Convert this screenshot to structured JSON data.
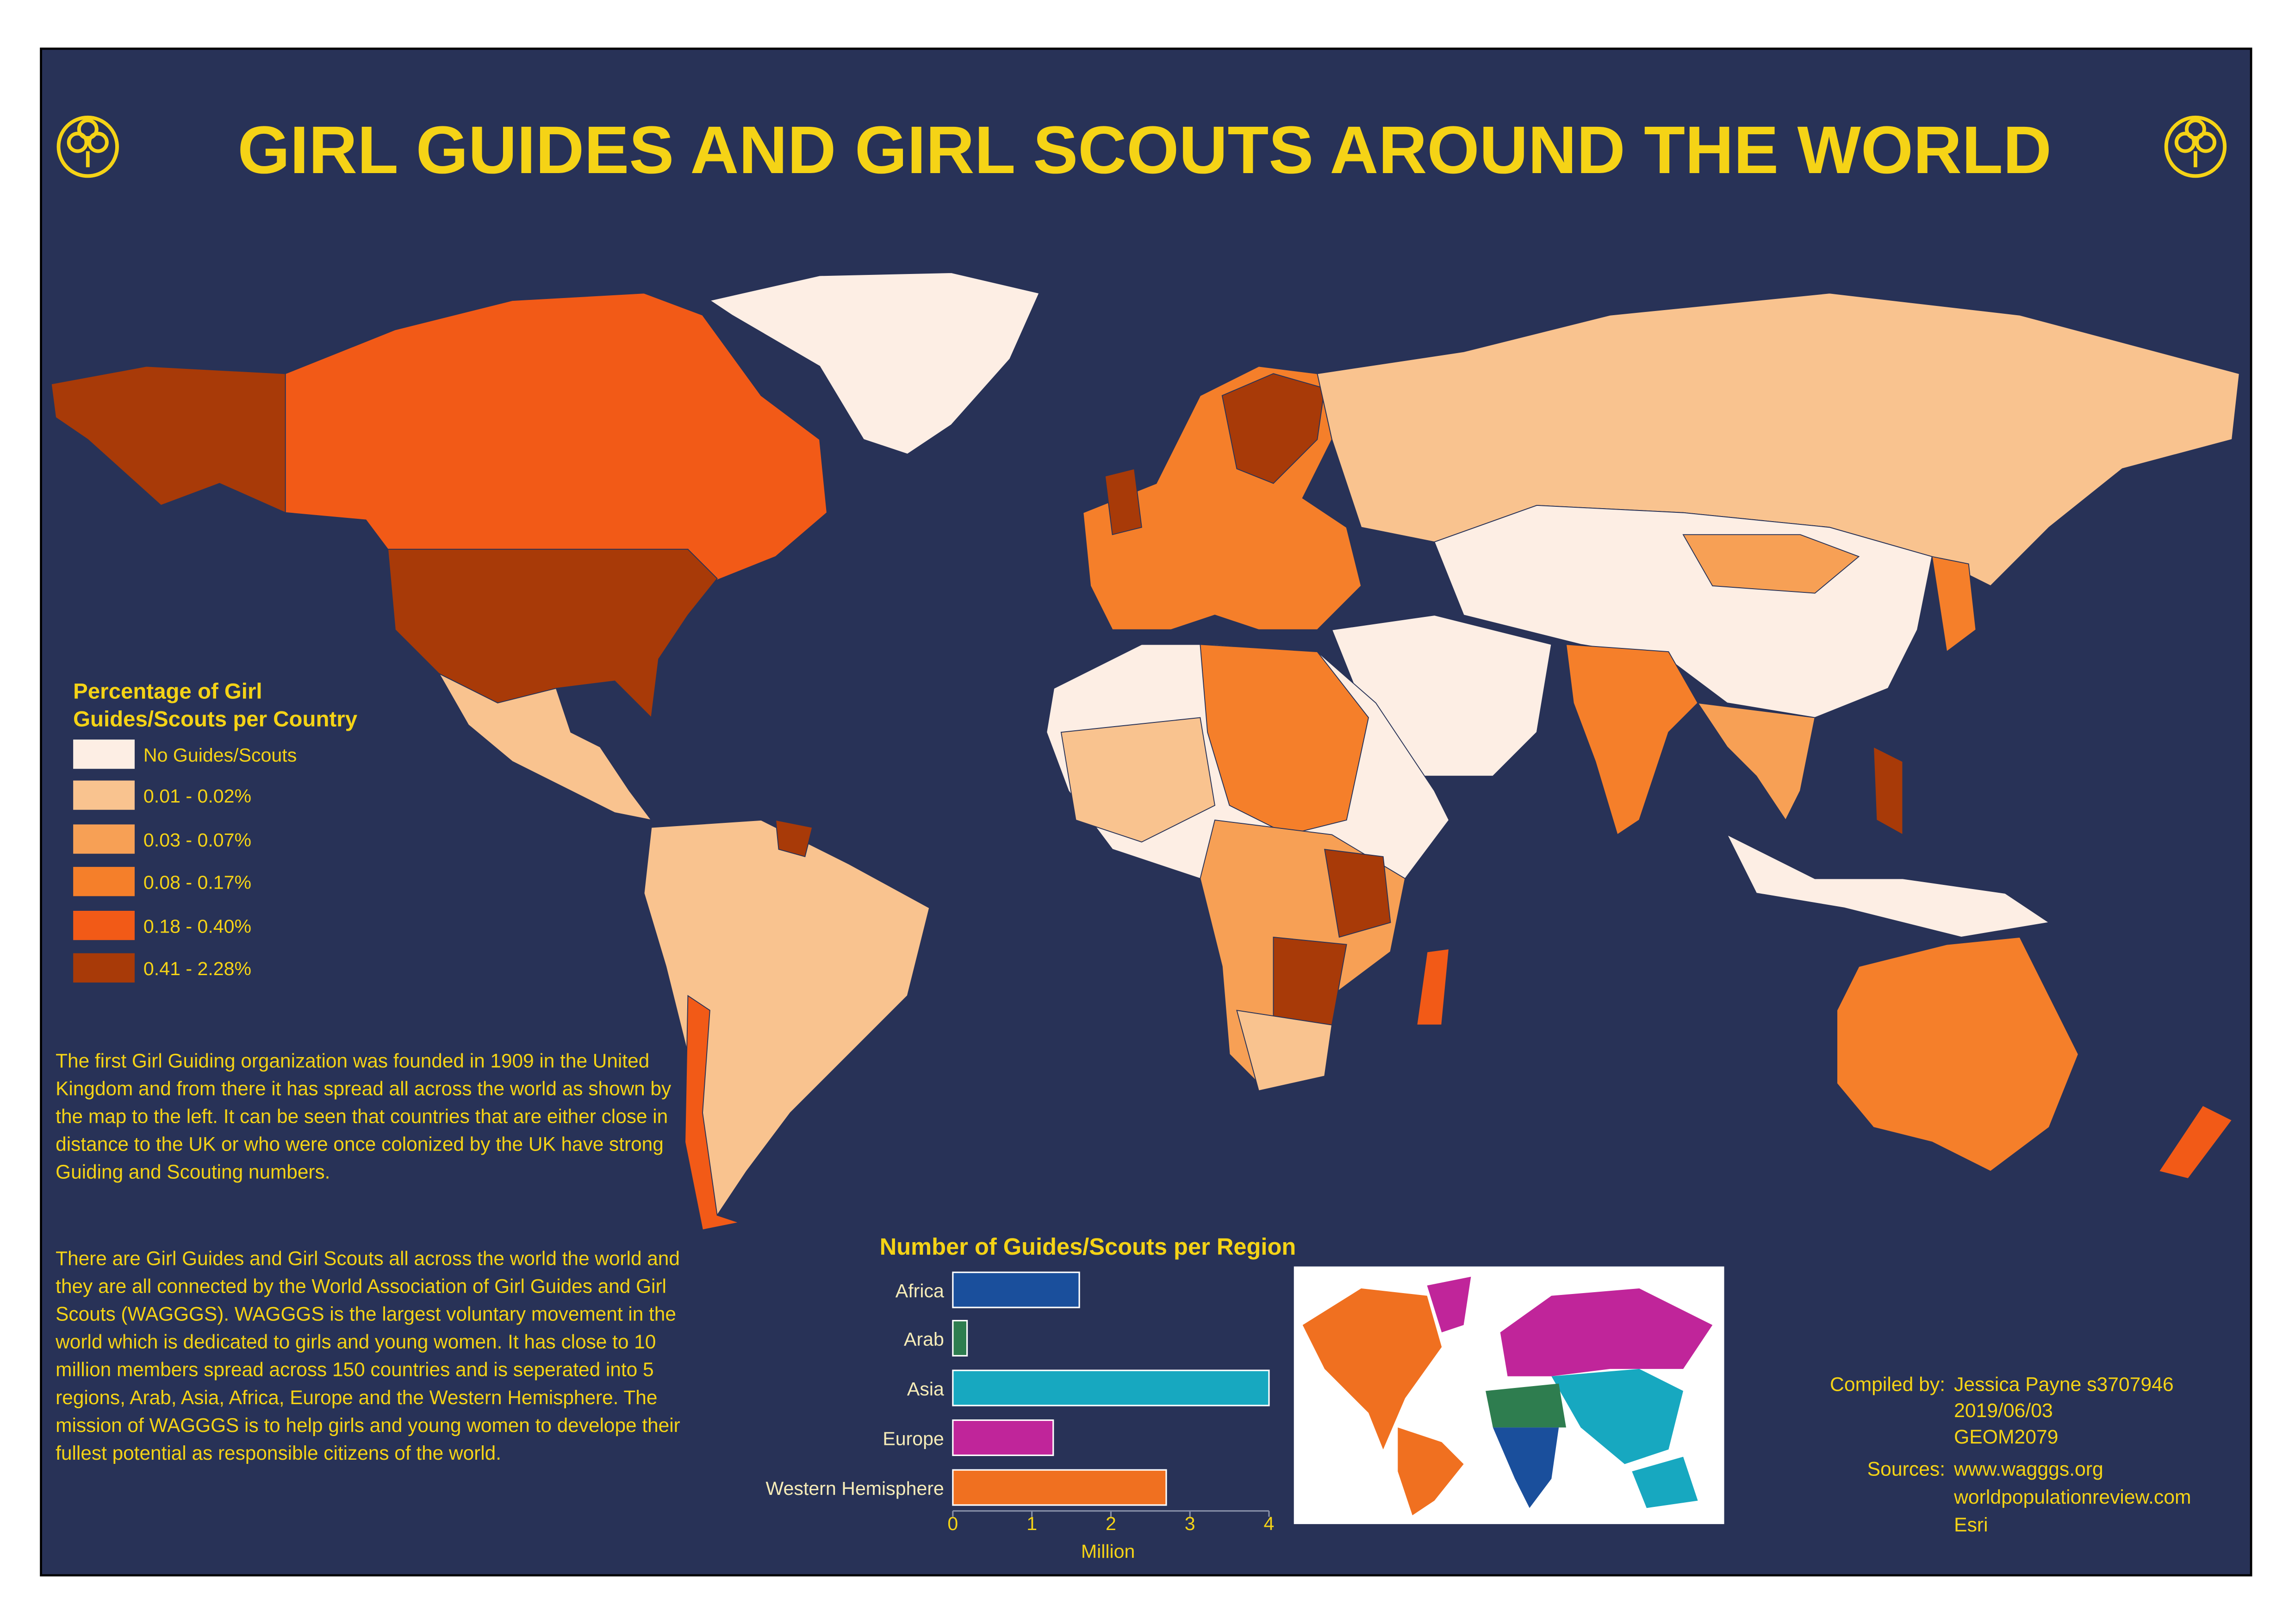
{
  "title": "GIRL GUIDES AND GIRL SCOUTS AROUND THE WORLD",
  "legend": {
    "title": "Percentage of Girl Guides/Scouts per Country",
    "items": [
      {
        "label": "No Guides/Scouts",
        "color": "#fdeee4"
      },
      {
        "label": "0.01 - 0.02%",
        "color": "#f9c38f"
      },
      {
        "label": "0.03 - 0.07%",
        "color": "#f7a055"
      },
      {
        "label": "0.08 - 0.17%",
        "color": "#f57f2a"
      },
      {
        "label": "0.18 - 0.40%",
        "color": "#f25a17"
      },
      {
        "label": "0.41 - 2.28%",
        "color": "#a83a08"
      }
    ]
  },
  "description": [
    "The first Girl Guiding organization was founded in 1909 in the United Kingdom and from there it has spread all across the world as shown by the map to the left. It can be seen that countries that are either close in distance to the UK or who were once colonized by the UK have strong Guiding and Scouting numbers.",
    "There are Girl Guides and Girl Scouts all across the world the world and they are all connected by the World Association of Girl Guides and Girl Scouts (WAGGGS). WAGGGS is the largest voluntary movement in the world which is dedicated to girls and young women. It has close to 10 million members spread across 150 countries and is seperated into 5 regions, Arab, Asia, Africa, Europe and the Western Hemisphere. The mission of WAGGGS is to help girls and young women to develope their fullest potential as responsible citizens of the world."
  ],
  "chart_data": {
    "type": "bar",
    "orientation": "horizontal",
    "title": "Number of Guides/Scouts per Region",
    "categories": [
      "Africa",
      "Arab",
      "Asia",
      "Europe",
      "Western Hemisphere"
    ],
    "values": [
      1.6,
      0.18,
      4.0,
      1.27,
      2.7
    ],
    "colors": [
      "#1a4f9c",
      "#2e7d4f",
      "#17a8c0",
      "#c0259a",
      "#f07020"
    ],
    "xlim": [
      0,
      4
    ],
    "xticks": [
      0,
      1,
      2,
      3,
      4
    ],
    "xlabel": "Million"
  },
  "credits": {
    "compiled_label": "Compiled by:",
    "compiled": [
      "Jessica Payne s3707946",
      "2019/06/03",
      "GEOM2079"
    ],
    "sources_label": "Sources:",
    "sources": [
      "www.wagggs.org",
      "worldpopulationreview.com",
      "Esri"
    ]
  }
}
